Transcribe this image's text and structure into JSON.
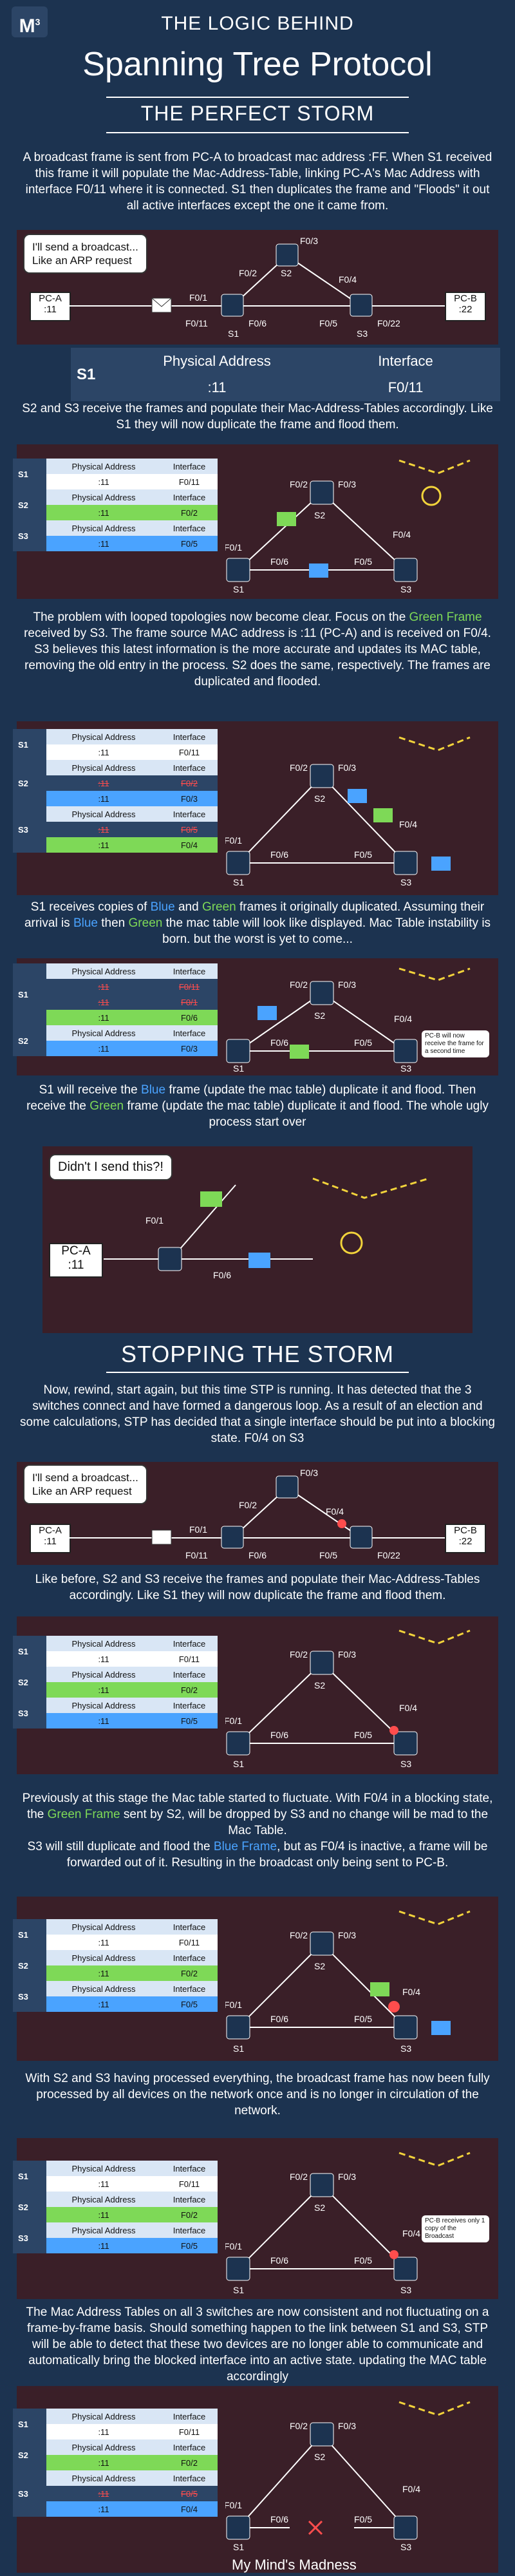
{
  "header": {
    "logo": "M",
    "logo_sup": "3",
    "title_line1": "THE LOGIC BEHIND",
    "title_line2": "Spanning Tree Protocol",
    "title_line3": "THE PERFECT STORM"
  },
  "p1": "A broadcast frame is sent from PC-A to broadcast mac address :FF. When S1 received this frame it will populate the Mac-Address-Table, linking PC-A's Mac Address with interface F0/11 where it is connected. S1 then duplicates the frame and \"Floods\" it out all active interfaces except the one it came from.",
  "bubble1_line1": "I'll send a broadcast...",
  "bubble1_line2": "Like an ARP request",
  "pc_a": {
    "name": "PC-A",
    "mac": ":11"
  },
  "pc_b": {
    "name": "PC-B",
    "mac": ":22"
  },
  "ports": {
    "f011": "F0/11",
    "f01": "F0/1",
    "f02": "F0/2",
    "f03": "F0/3",
    "f04": "F0/4",
    "f05": "F0/5",
    "f06": "F0/6",
    "f022": "F0/22"
  },
  "switches": {
    "s1": "S1",
    "s2": "S2",
    "s3": "S3"
  },
  "table_head": {
    "mac": "Physical Address",
    "intf": "Interface"
  },
  "big_table": {
    "sw": "S1",
    "mac": ":11",
    "intf": "F0/11"
  },
  "p2": "S2 and S3 receive the frames and populate their Mac-Address-Tables accordingly. Like S1 they will now duplicate the frame and flood them.",
  "p3_a": "The problem with looped topologies now become clear. Focus on the ",
  "p3_green": "Green Frame",
  "p3_b": " received by S3. The frame source MAC address is :11 (PC-A) and is received on F0/4.",
  "p3_c": "S3 believes this latest information is the more accurate and updates its MAC table, removing the old entry in the process. S2 does the same, respectively. The frames are duplicated and flooded.",
  "p4_a": "S1 receives copies of ",
  "p4_blue": "Blue",
  "p4_b": " and ",
  "p4_green": "Green",
  "p4_c": " frames it originally duplicated. Assuming their arrival is ",
  "p4_blue2": "Blue",
  "p4_d": " then ",
  "p4_green2": "Green",
  "p4_e": " the mac table will look like displayed. Mac Table instability is born. but the worst is yet to come...",
  "note4": "PC-B will now receive the frame for a second time",
  "p5_a": "S1 will receive the ",
  "p5_blue": "Blue",
  "p5_b": " frame (update the mac table) duplicate it and flood. Then receive the ",
  "p5_green": "Green",
  "p5_c": " frame (update the mac table) duplicate it and flood. The whole ugly process start over",
  "bubble5": "Didn't I send this?!",
  "section2": "STOPPING THE STORM",
  "p6": "Now, rewind, start again, but this time STP is running. It has detected that the 3 switches connect and have formed a dangerous loop. As a result of an election and some calculations, STP has decided that a single interface should be put into a blocking state. F0/4 on S3",
  "p7": "Like before, S2 and S3 receive the frames and populate their Mac-Address-Tables accordingly. Like S1 they will now duplicate the frame and flood them.",
  "p8_a": "Previously at this stage the Mac table started to fluctuate. With F0/4 in a blocking state, the ",
  "p8_green": "Green Frame",
  "p8_b": " sent by S2, will be dropped by S3 and no change will be mad to the Mac Table.",
  "p8_c": "S3 will still duplicate and flood the ",
  "p8_blue": "Blue Frame",
  "p8_d": ", but as F0/4 is inactive, a frame will be forwarded out of it. Resulting in the broadcast only being sent to PC-B.",
  "p9": "With S2 and S3 having processed everything, the broadcast frame has now been fully processed by all devices on the network once and is no longer in circulation of the network.",
  "note9": "PC-B receives only 1 copy of the Broadcast",
  "p10": "The Mac Address Tables on all 3 switches are now consistent and not fluctuating on a frame-by-frame basis. Should something happen to the link between S1 and S3, STP will be able to detect that these two devices are no longer able to communicate and automatically bring the blocked interface into an active state. updating the MAC table accordingly",
  "footer": "My Mind's Madness",
  "colors": {
    "bg": "#1c3350",
    "panel": "#3a1f28",
    "green": "#7ed957",
    "blue": "#4aa3ff",
    "yellow": "#f2d33b",
    "red": "#ff4d4d"
  }
}
